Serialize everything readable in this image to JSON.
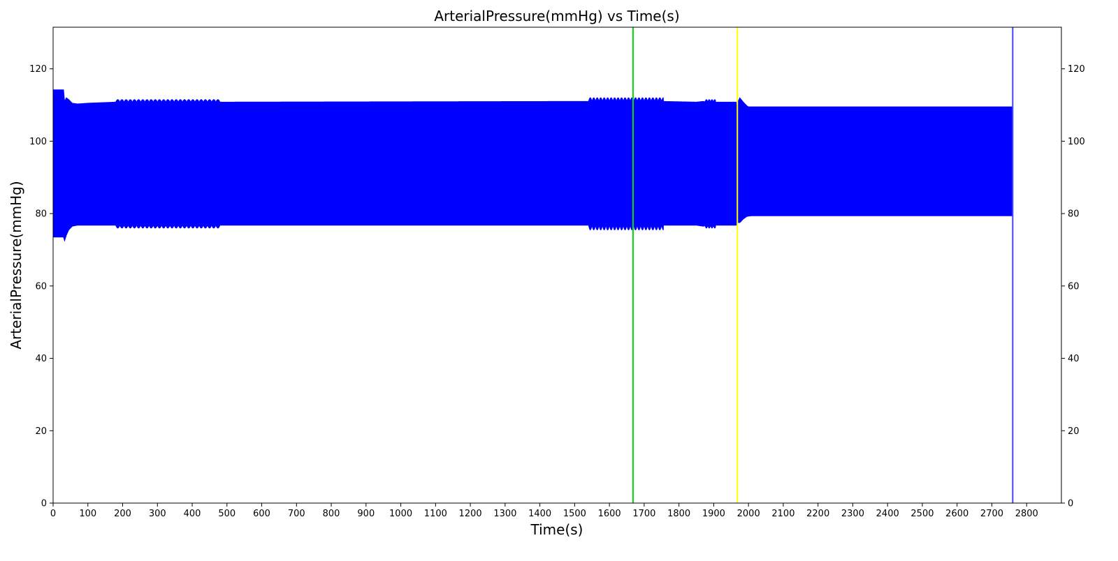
{
  "chart_data": {
    "type": "area",
    "title": "ArterialPressure(mmHg) vs Time(s)",
    "xlabel": "Time(s)",
    "ylabel": "ArterialPressure(mmHg)",
    "xlim": [
      0,
      2900
    ],
    "ylim": [
      0,
      131.5
    ],
    "x_ticks": [
      0,
      100,
      200,
      300,
      400,
      500,
      600,
      700,
      800,
      900,
      1000,
      1100,
      1200,
      1300,
      1400,
      1500,
      1600,
      1700,
      1800,
      1900,
      2000,
      2100,
      2200,
      2300,
      2400,
      2500,
      2600,
      2700,
      2800
    ],
    "y_ticks": [
      0,
      20,
      40,
      60,
      80,
      100,
      120
    ],
    "right_axis_ticks": true,
    "grid": false,
    "series": [
      {
        "color": "#0000ff",
        "fill": true,
        "x": [
          0,
          30,
          33,
          38,
          45,
          55,
          70,
          100,
          180,
          480,
          1540,
          1750,
          1850,
          1870,
          1880,
          1905,
          1965,
          1967,
          1970,
          1975,
          1985,
          1995,
          2000,
          2010,
          2760
        ],
        "upper": [
          114.2,
          114.2,
          111.0,
          112.0,
          111.5,
          110.5,
          110.3,
          110.5,
          110.8,
          110.8,
          111.0,
          111.0,
          110.8,
          111.0,
          110.8,
          110.8,
          110.8,
          108.0,
          111.0,
          112.0,
          110.8,
          109.8,
          109.5,
          109.5,
          109.5
        ],
        "lower": [
          73.5,
          73.5,
          72.5,
          74.0,
          75.5,
          76.5,
          76.8,
          76.8,
          76.8,
          76.8,
          76.8,
          76.8,
          76.8,
          76.5,
          76.8,
          76.8,
          76.8,
          79.0,
          77.5,
          77.5,
          78.5,
          79.2,
          79.3,
          79.4,
          79.4
        ],
        "oscillation_bands": [
          {
            "x0": 180,
            "x1": 480,
            "upper_peak": 111.5,
            "lower_trough": 76.0,
            "period": 12
          },
          {
            "x0": 1540,
            "x1": 1755,
            "upper_peak": 112.0,
            "lower_trough": 75.5,
            "period": 10
          },
          {
            "x0": 1875,
            "x1": 1905,
            "upper_peak": 111.5,
            "lower_trough": 76.0,
            "period": 8
          }
        ]
      }
    ],
    "vertical_lines": [
      {
        "x": 1668,
        "color": "#00e000"
      },
      {
        "x": 1968,
        "color": "#ffff00"
      },
      {
        "x": 2760,
        "color": "#4444ff"
      }
    ]
  }
}
